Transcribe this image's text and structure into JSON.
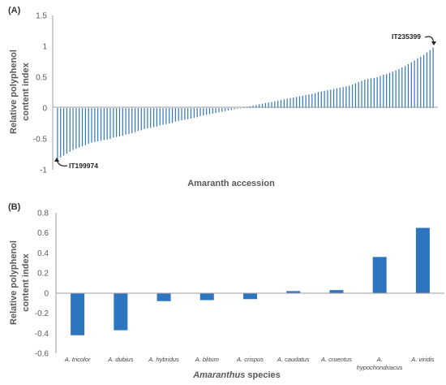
{
  "colors": {
    "bar": "#2e75c0",
    "axis": "#7f7f7f",
    "grid": "#d9d9d9",
    "text": "#595959"
  },
  "chart_data": [
    {
      "panel_label": "(A)",
      "type": "bar",
      "xlabel": "Amaranth accession",
      "ylabel": [
        "Relative polyphenol",
        "content index"
      ],
      "ylim": [
        -1,
        1.5
      ],
      "yticks": [
        -1,
        -0.5,
        0,
        0.5,
        1,
        1.5
      ],
      "ytick_labels": [
        "-1",
        "-0.5",
        "0",
        "0.5",
        "1",
        "1.5"
      ],
      "grid": false,
      "values": [
        -0.85,
        -0.8,
        -0.77,
        -0.74,
        -0.71,
        -0.68,
        -0.66,
        -0.64,
        -0.62,
        -0.6,
        -0.58,
        -0.56,
        -0.55,
        -0.54,
        -0.53,
        -0.52,
        -0.51,
        -0.5,
        -0.48,
        -0.47,
        -0.46,
        -0.45,
        -0.43,
        -0.42,
        -0.41,
        -0.39,
        -0.37,
        -0.36,
        -0.34,
        -0.33,
        -0.32,
        -0.31,
        -0.3,
        -0.28,
        -0.27,
        -0.26,
        -0.25,
        -0.24,
        -0.22,
        -0.21,
        -0.2,
        -0.19,
        -0.18,
        -0.17,
        -0.16,
        -0.15,
        -0.13,
        -0.12,
        -0.11,
        -0.1,
        -0.09,
        -0.08,
        -0.07,
        -0.06,
        -0.05,
        -0.04,
        -0.03,
        -0.02,
        -0.01,
        0,
        0.01,
        0.02,
        0.03,
        0.04,
        0.05,
        0.06,
        0.07,
        0.08,
        0.09,
        0.1,
        0.11,
        0.12,
        0.13,
        0.14,
        0.15,
        0.16,
        0.17,
        0.18,
        0.19,
        0.2,
        0.21,
        0.22,
        0.23,
        0.24,
        0.26,
        0.27,
        0.28,
        0.29,
        0.3,
        0.31,
        0.32,
        0.33,
        0.34,
        0.35,
        0.36,
        0.38,
        0.4,
        0.42,
        0.44,
        0.46,
        0.47,
        0.48,
        0.49,
        0.5,
        0.52,
        0.54,
        0.55,
        0.57,
        0.59,
        0.61,
        0.63,
        0.66,
        0.68,
        0.71,
        0.74,
        0.77,
        0.8,
        0.83,
        0.86,
        0.9,
        0.94,
        0.98
      ],
      "annotations": [
        {
          "text": "IT235399",
          "target": "max"
        },
        {
          "text": "IT199974",
          "target": "min"
        }
      ]
    },
    {
      "panel_label": "(B)",
      "type": "bar",
      "xlabel": "Amaranthus species",
      "ylabel": [
        "Relative polyphenol",
        "content index"
      ],
      "ylim": [
        -0.6,
        0.8
      ],
      "yticks": [
        -0.6,
        -0.4,
        -0.2,
        0,
        0.2,
        0.4,
        0.6,
        0.8
      ],
      "ytick_labels": [
        "-0.6",
        "-0.4",
        "-0.2",
        "0",
        "0.2",
        "0.4",
        "0.6",
        "0.8"
      ],
      "grid": false,
      "categories": [
        "A. tricolor",
        "A. dubius",
        "A. hybridus",
        "A. blitum",
        "A. crispus",
        "A. caudatus",
        "A. cruentus",
        "A. hypochondriacus",
        "A. viridis"
      ],
      "category_lines": [
        [
          "A. tricolor"
        ],
        [
          "A. dubius"
        ],
        [
          "A. hybridus"
        ],
        [
          "A. blitum"
        ],
        [
          "A. crispus"
        ],
        [
          "A. caudatus"
        ],
        [
          "A. cruentus"
        ],
        [
          "A.",
          "hypochondriacus"
        ],
        [
          "A. viridis"
        ]
      ],
      "values": [
        -0.42,
        -0.37,
        -0.08,
        -0.07,
        -0.06,
        0.02,
        0.03,
        0.36,
        0.65
      ]
    }
  ]
}
